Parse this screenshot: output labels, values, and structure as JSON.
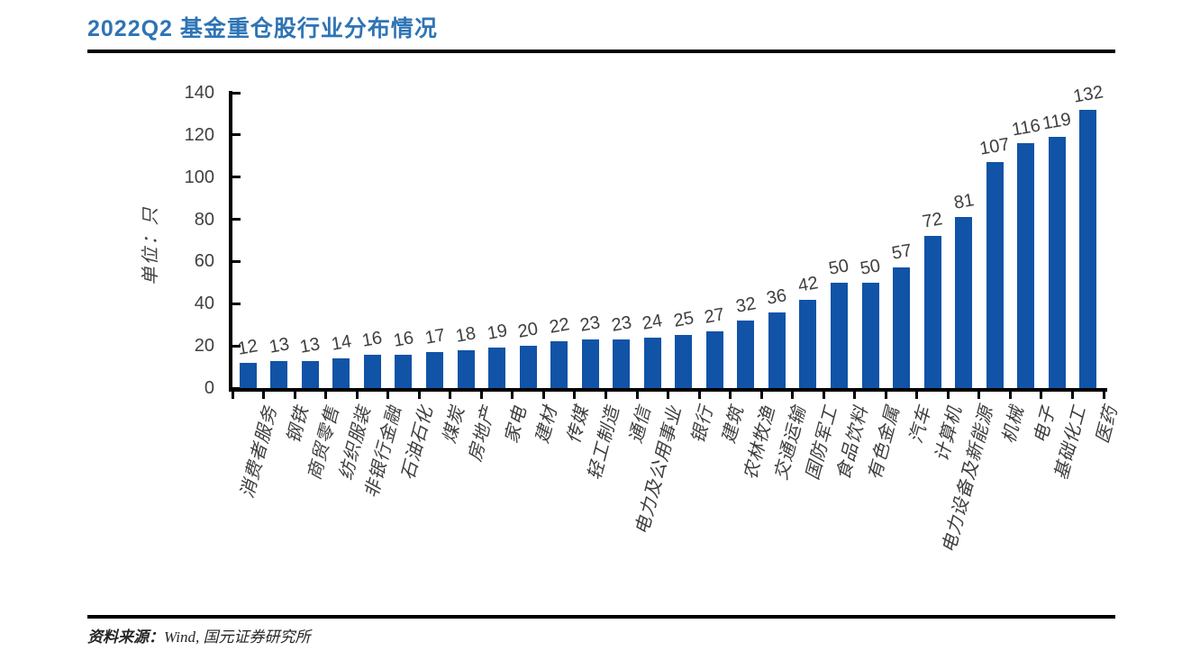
{
  "header": {
    "title": "2022Q2 基金重仓股行业分布情况"
  },
  "chart_data": {
    "type": "bar",
    "title": "2022Q2 基金重仓股行业分布情况",
    "xlabel": "",
    "ylabel": "单位：只",
    "ylim": [
      0,
      140
    ],
    "yticks": [
      0,
      20,
      40,
      60,
      80,
      100,
      120,
      140
    ],
    "grid": false,
    "legend": false,
    "bar_color": "#1153A6",
    "axis_color": "#000000",
    "label_color": "#404040",
    "title_color": "#2E74B5",
    "categories": [
      "消费者服务",
      "钢铁",
      "商贸零售",
      "纺织服装",
      "非银行金融",
      "石油石化",
      "煤炭",
      "房地产",
      "家电",
      "建材",
      "传媒",
      "轻工制造",
      "通信",
      "电力及公用事业",
      "银行",
      "建筑",
      "农林牧渔",
      "交通运输",
      "国防军工",
      "食品饮料",
      "有色金属",
      "汽车",
      "计算机",
      "电力设备及新能源",
      "机械",
      "电子",
      "基础化工",
      "医药"
    ],
    "values": [
      12,
      13,
      13,
      14,
      16,
      16,
      17,
      18,
      19,
      20,
      22,
      23,
      23,
      24,
      25,
      27,
      32,
      36,
      42,
      50,
      50,
      57,
      72,
      81,
      107,
      116,
      119,
      132
    ]
  },
  "footer": {
    "source_label": "资料来源：",
    "source_text": "Wind, 国元证券研究所"
  }
}
